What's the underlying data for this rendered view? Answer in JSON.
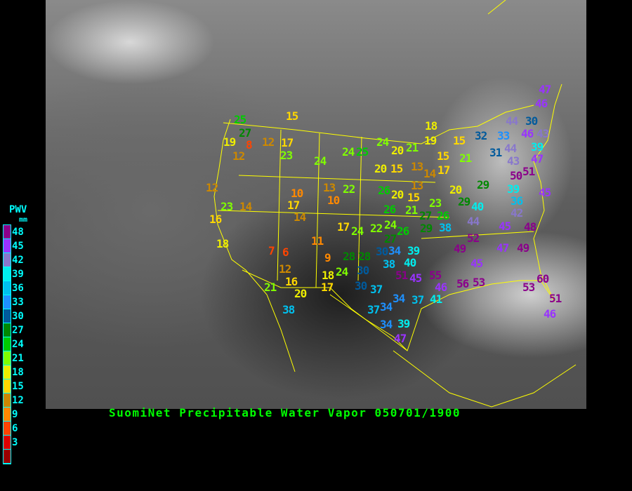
{
  "title": "SuomiNet Precipitable Water Vapor 050701/1900",
  "legend": {
    "title": "PWV",
    "unit": "mm",
    "labels": [
      "48",
      "45",
      "42",
      "39",
      "36",
      "33",
      "30",
      "27",
      "24",
      "21",
      "18",
      "15",
      "12",
      "9",
      "6",
      "3"
    ],
    "colors": [
      "#8b008b",
      "#9933ff",
      "#8877cc",
      "#00eeee",
      "#00c0ee",
      "#1e90ff",
      "#005a9c",
      "#008800",
      "#00cc00",
      "#80ff00",
      "#eeee00",
      "#ffd700",
      "#cc8800",
      "#ff8800",
      "#ff4400",
      "#dd0000",
      "#990000"
    ]
  },
  "border_color": "#ffff00",
  "stations": [
    "25",
    "27",
    "19",
    "8",
    "12",
    "12",
    "17",
    "23",
    "15",
    "24",
    "24",
    "25",
    "12",
    "23",
    "14",
    "16",
    "18",
    "10",
    "17",
    "14",
    "13",
    "22",
    "10",
    "17",
    "24",
    "22",
    "27",
    "26",
    "30",
    "24",
    "20",
    "21",
    "20",
    "15",
    "13",
    "14",
    "13",
    "17",
    "20",
    "15",
    "26",
    "26",
    "21",
    "23",
    "27",
    "26",
    "24",
    "29",
    "38",
    "18",
    "19",
    "15",
    "15",
    "21",
    "32",
    "33",
    "31",
    "44",
    "30",
    "46",
    "43",
    "44",
    "39",
    "47",
    "43",
    "51",
    "50",
    "20",
    "29",
    "29",
    "40",
    "39",
    "36",
    "45",
    "42",
    "44",
    "45",
    "48",
    "47",
    "46",
    "52",
    "49",
    "47",
    "49",
    "45",
    "55",
    "46",
    "56",
    "53",
    "41",
    "60",
    "53",
    "51",
    "46",
    "11",
    "7",
    "6",
    "9",
    "12",
    "16",
    "20",
    "17",
    "18",
    "21",
    "38",
    "24",
    "28",
    "28",
    "30",
    "30",
    "37",
    "34",
    "39",
    "38",
    "40",
    "51",
    "45",
    "34",
    "37",
    "37",
    "34",
    "34",
    "39",
    "47"
  ]
}
